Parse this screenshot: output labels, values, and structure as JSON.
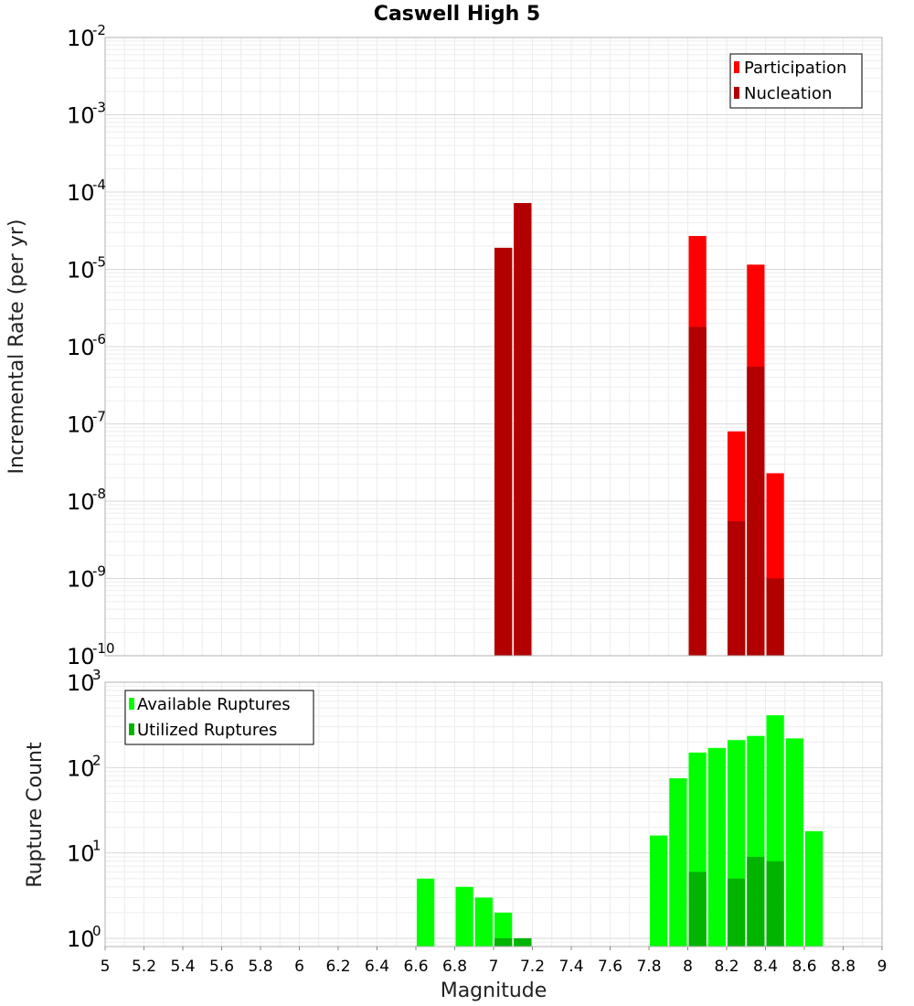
{
  "chart_data": [
    {
      "type": "bar",
      "panel": "top",
      "title": "Caswell High 5",
      "xlabel": "Magnitude",
      "ylabel": "Incremental Rate (per yr)",
      "yscale": "log",
      "xlim": [
        5,
        9
      ],
      "ylim": [
        1e-10,
        0.01
      ],
      "bin_width": 0.1,
      "grid": true,
      "legend_position": "top-right",
      "ytick_exponents": [
        "-10",
        "-9",
        "-8",
        "-7",
        "-6",
        "-5",
        "-4",
        "-3",
        "-2"
      ],
      "ytick_base": "10",
      "series": [
        {
          "name": "Participation",
          "color": "#ff0000",
          "points": [
            {
              "x": 7.05,
              "y": 1.9e-05
            },
            {
              "x": 7.15,
              "y": 7.2e-05
            },
            {
              "x": 8.05,
              "y": 2.7e-05
            },
            {
              "x": 8.25,
              "y": 8e-08
            },
            {
              "x": 8.35,
              "y": 1.15e-05
            },
            {
              "x": 8.45,
              "y": 2.3e-08
            }
          ]
        },
        {
          "name": "Nucleation",
          "color": "#b20000",
          "points": [
            {
              "x": 7.05,
              "y": 1.9e-05
            },
            {
              "x": 7.15,
              "y": 7.2e-05
            },
            {
              "x": 8.05,
              "y": 1.8e-06
            },
            {
              "x": 8.25,
              "y": 5.5e-09
            },
            {
              "x": 8.35,
              "y": 5.5e-07
            },
            {
              "x": 8.45,
              "y": 1e-09
            }
          ]
        }
      ]
    },
    {
      "type": "bar",
      "panel": "bottom",
      "xlabel": "Magnitude",
      "ylabel": "Rupture Count",
      "yscale": "log",
      "xlim": [
        5,
        9
      ],
      "ylim": [
        0.8,
        1000
      ],
      "bin_width": 0.1,
      "grid": true,
      "legend_position": "top-left",
      "ytick_exponents": [
        "0",
        "1",
        "2",
        "3"
      ],
      "ytick_base": "10",
      "xticks": [
        "5",
        "5.2",
        "5.4",
        "5.6",
        "5.8",
        "6",
        "6.2",
        "6.4",
        "6.6",
        "6.8",
        "7",
        "7.2",
        "7.4",
        "7.6",
        "7.8",
        "8",
        "8.2",
        "8.4",
        "8.6",
        "8.8",
        "9"
      ],
      "series": [
        {
          "name": "Available Ruptures",
          "color": "#00ff00",
          "points": [
            {
              "x": 6.65,
              "y": 5
            },
            {
              "x": 6.85,
              "y": 4
            },
            {
              "x": 6.95,
              "y": 3
            },
            {
              "x": 7.05,
              "y": 2
            },
            {
              "x": 7.15,
              "y": 1
            },
            {
              "x": 7.85,
              "y": 16
            },
            {
              "x": 7.95,
              "y": 75
            },
            {
              "x": 8.05,
              "y": 150
            },
            {
              "x": 8.15,
              "y": 170
            },
            {
              "x": 8.25,
              "y": 210
            },
            {
              "x": 8.35,
              "y": 235
            },
            {
              "x": 8.45,
              "y": 410
            },
            {
              "x": 8.55,
              "y": 220
            },
            {
              "x": 8.65,
              "y": 18
            }
          ]
        },
        {
          "name": "Utilized Ruptures",
          "color": "#00b400",
          "points": [
            {
              "x": 7.05,
              "y": 1
            },
            {
              "x": 7.15,
              "y": 1
            },
            {
              "x": 8.05,
              "y": 6
            },
            {
              "x": 8.25,
              "y": 5
            },
            {
              "x": 8.35,
              "y": 9
            },
            {
              "x": 8.45,
              "y": 8
            }
          ]
        }
      ]
    }
  ]
}
